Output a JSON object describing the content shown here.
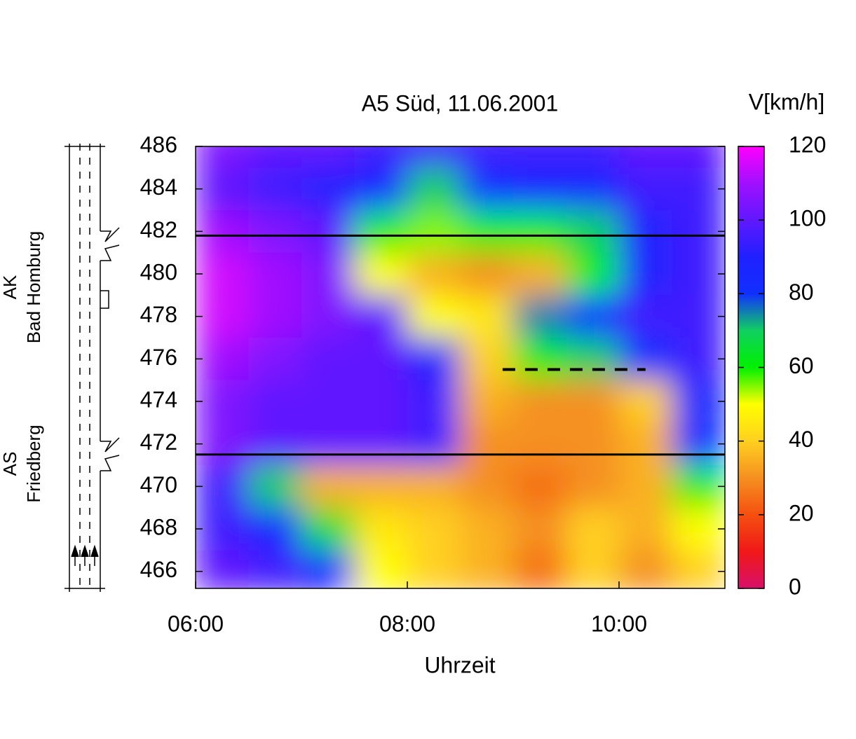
{
  "chart_data": {
    "type": "heatmap",
    "title": "A5 Süd, 11.06.2001",
    "xlabel": "Uhrzeit",
    "colorbar_label": "V[km/h]",
    "side_labels": [
      [
        "AK",
        "Bad Homburg"
      ],
      [
        "AS",
        "Friedberg"
      ]
    ],
    "x": [
      6.25,
      6.75,
      7.25,
      7.75,
      8.25,
      8.75,
      9.25,
      9.75,
      10.25,
      10.75
    ],
    "y": [
      486,
      484,
      482,
      480,
      478,
      476,
      474,
      472,
      470,
      468,
      466
    ],
    "values": [
      [
        105,
        100,
        100,
        95,
        95,
        95,
        95,
        95,
        100,
        100
      ],
      [
        100,
        95,
        90,
        85,
        70,
        80,
        85,
        85,
        95,
        95
      ],
      [
        110,
        105,
        100,
        60,
        55,
        60,
        60,
        70,
        90,
        95
      ],
      [
        115,
        110,
        105,
        50,
        35,
        30,
        35,
        60,
        90,
        95
      ],
      [
        115,
        110,
        105,
        100,
        50,
        45,
        75,
        80,
        95,
        95
      ],
      [
        110,
        105,
        100,
        100,
        90,
        40,
        60,
        70,
        80,
        95
      ],
      [
        105,
        100,
        100,
        100,
        95,
        35,
        30,
        30,
        40,
        85
      ],
      [
        105,
        100,
        100,
        100,
        95,
        30,
        30,
        30,
        35,
        80
      ],
      [
        95,
        70,
        35,
        35,
        35,
        30,
        25,
        30,
        35,
        60
      ],
      [
        95,
        85,
        65,
        45,
        40,
        35,
        30,
        40,
        35,
        50
      ],
      [
        100,
        95,
        85,
        50,
        40,
        35,
        25,
        40,
        30,
        40
      ]
    ],
    "xlim": [
      6,
      11
    ],
    "xticks": [
      {
        "value": 6,
        "label": "06:00"
      },
      {
        "value": 8,
        "label": "08:00"
      },
      {
        "value": 10,
        "label": "10:00"
      }
    ],
    "ylim": [
      465.2,
      486
    ],
    "yticks": [
      466,
      468,
      470,
      472,
      474,
      476,
      478,
      480,
      482,
      484,
      486
    ],
    "zlim": [
      0,
      120
    ],
    "zticks": [
      0,
      20,
      40,
      60,
      80,
      100,
      120
    ],
    "palette": [
      "#d8106a",
      "#f01818",
      "#f55010",
      "#f59020",
      "#ffd020",
      "#ffff00",
      "#00f000",
      "#10d060",
      "#1030ff",
      "#2020ff",
      "#6018ff",
      "#a010ff",
      "#ff00ff"
    ],
    "hlines": [
      481.8,
      471.5
    ],
    "dashed_segment": {
      "y": 475.5,
      "x": [
        8.9,
        10.25
      ]
    }
  }
}
